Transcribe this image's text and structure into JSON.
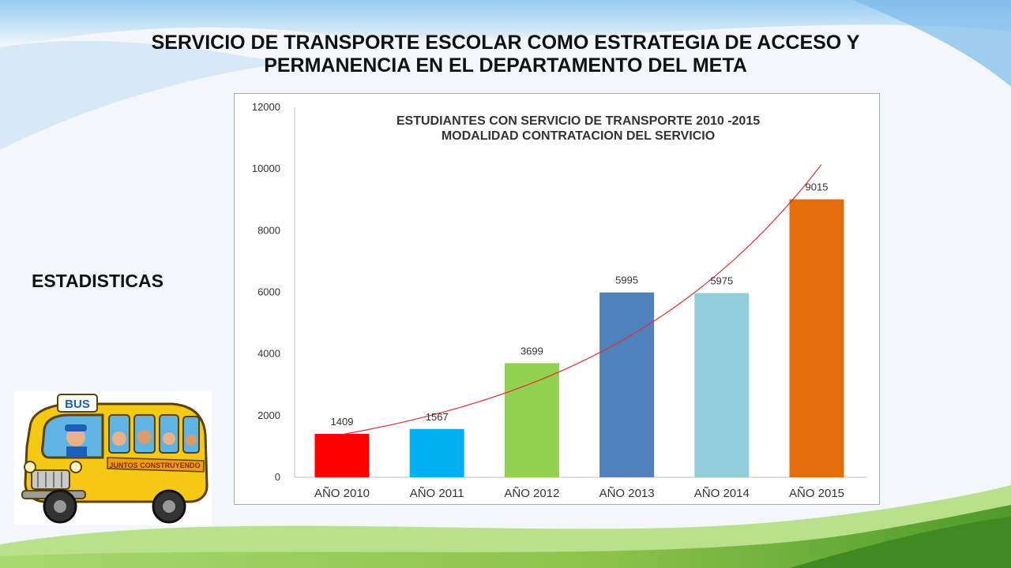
{
  "slide": {
    "title_line1": "SERVICIO DE TRANSPORTE ESCOLAR COMO ESTRATEGIA DE ACCESO Y",
    "title_line2": "PERMANENCIA EN EL DEPARTAMENTO DEL META",
    "section_label": "ESTADISTICAS"
  },
  "illustration": {
    "icon": "school-bus-icon",
    "sign_text": "BUS",
    "banner_text": "JUNTOS CONSTRUYENDO"
  },
  "colors": {
    "bar_2010": "#ff0000",
    "bar_2011": "#00b0f0",
    "bar_2012": "#92d050",
    "bar_2013": "#4f81bd",
    "bar_2014": "#92cddc",
    "bar_2015": "#e46c0a",
    "trendline": "#e03030",
    "hills": "#7dc142",
    "sky": "#5aa9e6"
  },
  "chart_data": {
    "type": "bar",
    "title_line1": "ESTUDIANTES CON SERVICIO DE TRANSPORTE 2010 -2015",
    "title_line2": "MODALIDAD CONTRATACION DEL SERVICIO",
    "categories": [
      "AÑO 2010",
      "AÑO 2011",
      "AÑO 2012",
      "AÑO 2013",
      "AÑO 2014",
      "AÑO 2015"
    ],
    "values": [
      1409,
      1567,
      3699,
      5995,
      5975,
      9015
    ],
    "ylim": [
      0,
      12000
    ],
    "yticks": [
      0,
      2000,
      4000,
      6000,
      8000,
      10000,
      12000
    ],
    "data_labels": true,
    "trendline": "exponential",
    "grid": false,
    "legend": "none"
  }
}
